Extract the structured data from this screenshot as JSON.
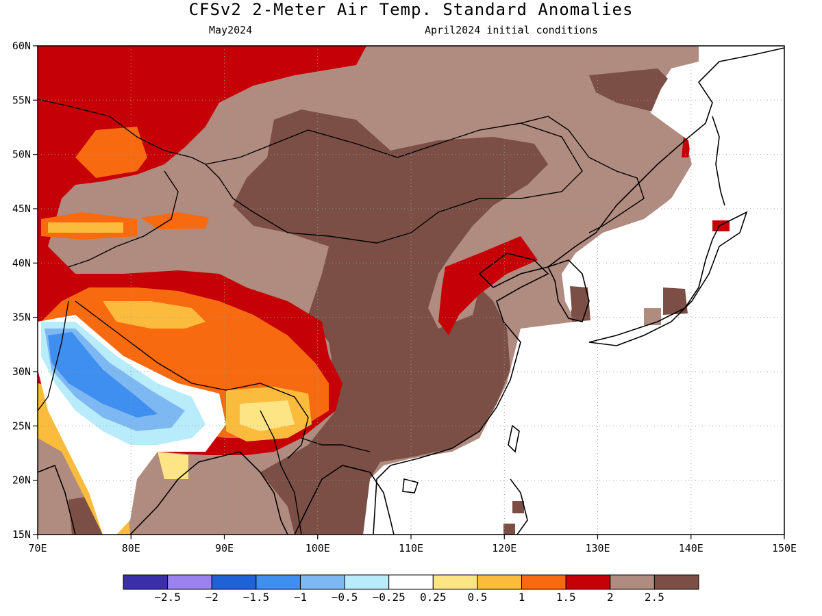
{
  "title": "CFSv2 2-Meter Air Temp. Standard Anomalies",
  "subtitle_left": "May2024",
  "subtitle_right": "April2024 initial conditions",
  "map": {
    "lon_range": [
      70,
      150
    ],
    "lat_range": [
      15,
      60
    ],
    "lon_ticks": [
      "70E",
      "80E",
      "90E",
      "100E",
      "110E",
      "120E",
      "130E",
      "140E",
      "150E"
    ],
    "lat_ticks": [
      "60N",
      "55N",
      "50N",
      "45N",
      "40N",
      "35N",
      "30N",
      "25N",
      "20N",
      "15N"
    ],
    "grid": "dotted"
  },
  "colorbar": {
    "colors": [
      "#3a2fa8",
      "#9a83ee",
      "#1f62d6",
      "#3f8ff0",
      "#7eb8f2",
      "#b8ecfa",
      "#ffffff",
      "#fde585",
      "#fbbc3d",
      "#f86a10",
      "#c60007",
      "#b08b80",
      "#7b4f45"
    ],
    "labels": [
      "-2.5",
      "-2",
      "-1.5",
      "-1",
      "-0.5",
      "-0.25",
      "0.25",
      "0.5",
      "1",
      "1.5",
      "2",
      "2.5"
    ]
  },
  "colors": {
    "very_high": "#7b4f45",
    "high": "#b08b80",
    "red": "#c60007",
    "orange": "#f86a10",
    "light_orange": "#fbbc3d",
    "yellow": "#fde585",
    "light_blue": "#b8ecfa",
    "mid_blue": "#7eb8f2",
    "blue": "#3f8ff0"
  }
}
